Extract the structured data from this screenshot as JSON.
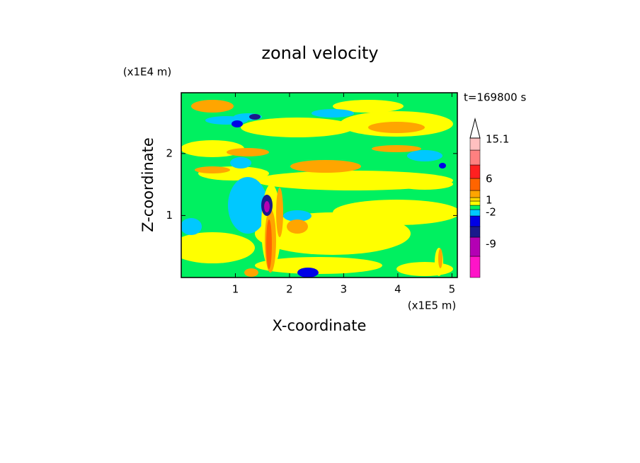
{
  "chart_data": {
    "type": "contour",
    "title": "zonal velocity",
    "xlabel": "X-coordinate",
    "ylabel": "Z-coordinate",
    "xunit": "(x1E5 m)",
    "yunit": "(x1E4 m)",
    "time_label": "t=169800 s",
    "xlim": [
      0,
      5.1
    ],
    "xticks": [
      1,
      2,
      3,
      4,
      5
    ],
    "ylim": [
      0,
      2.98
    ],
    "yticks": [
      1,
      2
    ],
    "colorbar": {
      "colors": [
        "#ff14c8",
        "#b400b4",
        "#1a1a8c",
        "#0000e6",
        "#00c8ff",
        "#00f060",
        "#ffff00",
        "#ffd700",
        "#ffa500",
        "#ff6400",
        "#ff2020",
        "#ff8080",
        "#ffc0c0"
      ],
      "labels": [
        15.1,
        6,
        1,
        -2,
        -9
      ]
    }
  }
}
